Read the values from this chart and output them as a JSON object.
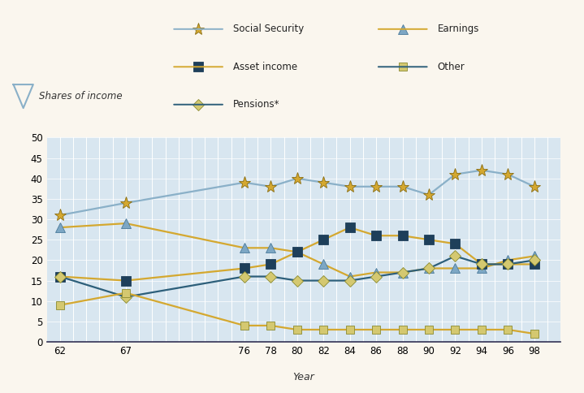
{
  "years": [
    62,
    67,
    76,
    78,
    80,
    82,
    84,
    86,
    88,
    90,
    92,
    94,
    96,
    98
  ],
  "social_security": [
    31,
    34,
    39,
    38,
    40,
    39,
    38,
    38,
    38,
    36,
    41,
    42,
    41,
    38
  ],
  "earnings": [
    28,
    29,
    23,
    23,
    22,
    19,
    16,
    17,
    17,
    18,
    18,
    18,
    20,
    21
  ],
  "asset_income": [
    16,
    15,
    18,
    19,
    22,
    25,
    28,
    26,
    26,
    25,
    24,
    19,
    19,
    19
  ],
  "other": [
    9,
    12,
    4,
    4,
    3,
    3,
    3,
    3,
    3,
    3,
    3,
    3,
    3,
    2
  ],
  "pensions": [
    16,
    11,
    16,
    16,
    15,
    15,
    15,
    16,
    17,
    18,
    21,
    19,
    19,
    20
  ],
  "ss_line_color": "#8ab0c8",
  "earnings_line_color": "#d4a830",
  "asset_line_color": "#d4a830",
  "pensions_line_color": "#2d5f7a",
  "other_line_color": "#d4a830",
  "ss_marker_fc": "#d4a830",
  "ss_marker_ec": "#8a6d10",
  "earnings_marker_fc": "#7da7c4",
  "earnings_marker_ec": "#4a7a9b",
  "asset_marker_fc": "#1e3f5a",
  "asset_marker_ec": "#1e3f5a",
  "pensions_marker_fc": "#d4c870",
  "pensions_marker_ec": "#8a8a30",
  "other_marker_fc": "#d4c870",
  "other_marker_ec": "#8a8a30",
  "plot_bg": "#d8e6f0",
  "fig_bg": "#faf6ee",
  "beige_bg": "#faf6ee",
  "xlabel": "Year",
  "ylim": [
    0,
    50
  ],
  "yticks": [
    0,
    5,
    10,
    15,
    20,
    25,
    30,
    35,
    40,
    45,
    50
  ],
  "xtick_positions": [
    62,
    67,
    76,
    78,
    80,
    82,
    84,
    86,
    88,
    90,
    92,
    94,
    96,
    98
  ],
  "xtick_labels": [
    "62",
    "67",
    "76",
    "78",
    "80",
    "82",
    "84",
    "86",
    "88",
    "90",
    "92",
    "94",
    "96",
    "98"
  ]
}
